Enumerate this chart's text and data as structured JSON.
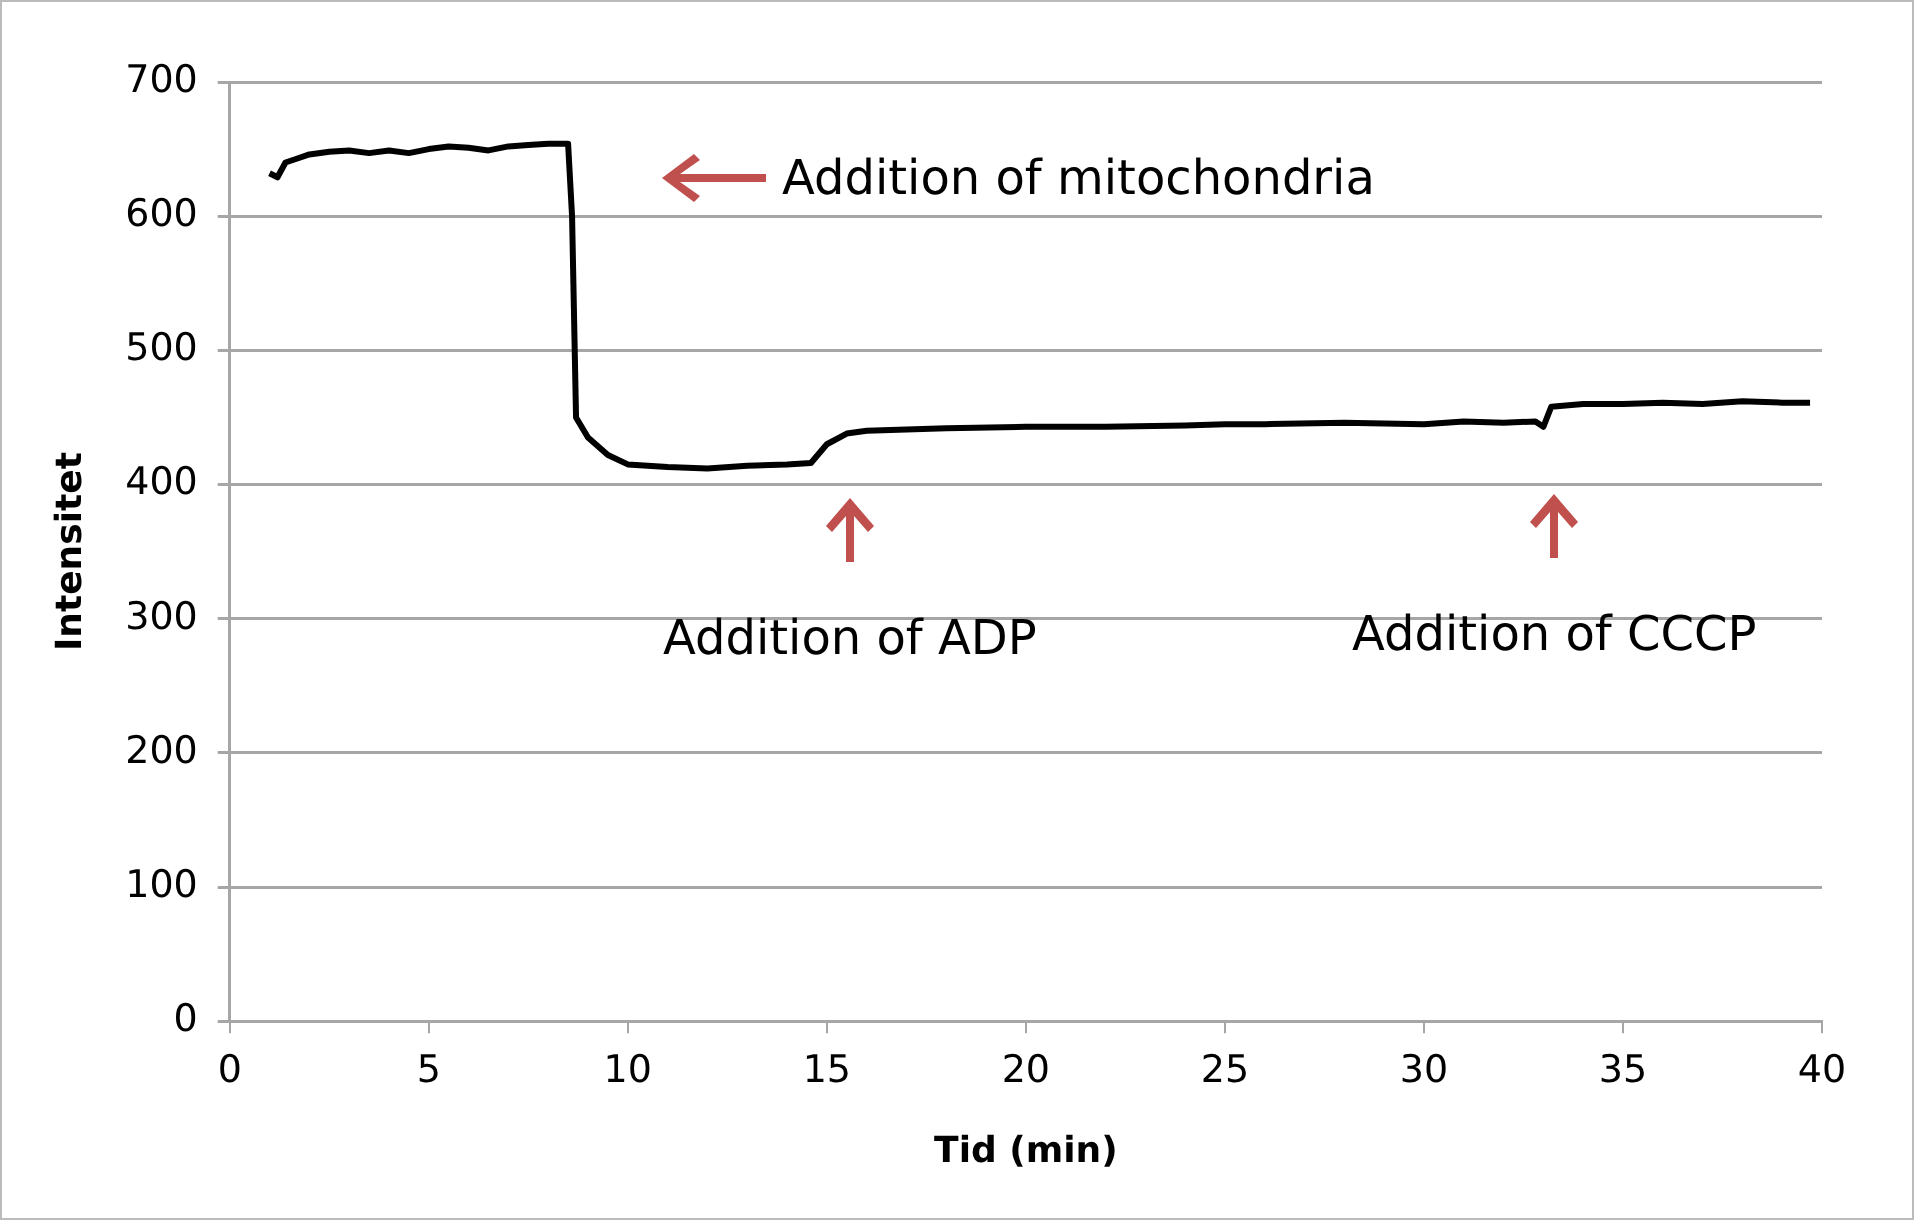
{
  "chart_data": {
    "type": "line",
    "xlabel": "Tid (min)",
    "ylabel": "Intensitet",
    "xlim": [
      0,
      40
    ],
    "xticks": [
      0,
      5,
      10,
      15,
      20,
      25,
      30,
      35,
      40
    ],
    "ylim": [
      0,
      700
    ],
    "yticks": [
      0,
      100,
      200,
      300,
      400,
      500,
      600,
      700
    ],
    "grid": "y",
    "legend": false,
    "marker": "none",
    "line_style": "solid",
    "series": [
      {
        "color": "#000000",
        "x": [
          1.0,
          1.2,
          1.4,
          1.7,
          2.0,
          2.5,
          3.0,
          3.5,
          4.0,
          4.5,
          5.0,
          5.5,
          6.0,
          6.5,
          7.0,
          7.5,
          8.0,
          8.5,
          8.6,
          8.7,
          9.0,
          9.5,
          10.0,
          11.0,
          12.0,
          13.0,
          14.0,
          14.6,
          15.0,
          15.5,
          16.0,
          17.0,
          18.0,
          20.0,
          22.0,
          24.0,
          25.0,
          26.0,
          28.0,
          30.0,
          31.0,
          32.0,
          32.8,
          33.0,
          33.2,
          34.0,
          35.0,
          36.0,
          37.0,
          38.0,
          39.0,
          39.7
        ],
        "values": [
          632,
          629,
          640,
          643,
          646,
          648,
          649,
          647,
          649,
          647,
          650,
          652,
          651,
          649,
          652,
          653,
          654,
          654,
          600,
          450,
          435,
          422,
          415,
          413,
          412,
          414,
          415,
          416,
          430,
          438,
          440,
          441,
          442,
          443,
          443,
          444,
          445,
          445,
          446,
          445,
          447,
          446,
          447,
          443,
          458,
          460,
          460,
          461,
          460,
          462,
          461,
          461
        ]
      }
    ],
    "annotations": [
      "Addition of mitochondria",
      "Addition of ADP",
      "Addition of CCCP"
    ]
  }
}
